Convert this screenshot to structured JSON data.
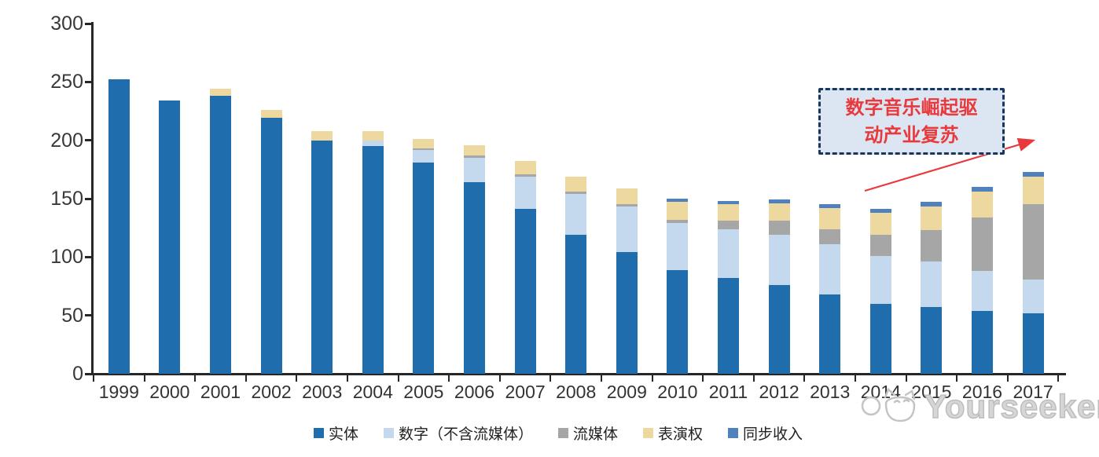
{
  "chart_data": {
    "type": "bar",
    "stacked": true,
    "title": "",
    "xlabel": "",
    "ylabel": "",
    "categories": [
      "1999",
      "2000",
      "2001",
      "2002",
      "2003",
      "2004",
      "2005",
      "2006",
      "2007",
      "2008",
      "2009",
      "2010",
      "2011",
      "2012",
      "2013",
      "2014",
      "2015",
      "2016",
      "2017"
    ],
    "series": [
      {
        "name": "实体",
        "color": "#1f6dad",
        "values": [
          252,
          234,
          238,
          219,
          200,
          195,
          181,
          164,
          141,
          119,
          104,
          89,
          82,
          76,
          68,
          60,
          57,
          54,
          52
        ]
      },
      {
        "name": "数字（不含流媒体）",
        "color": "#c5d9ee",
        "values": [
          0,
          0,
          0,
          0,
          0,
          5,
          11,
          21,
          28,
          35,
          39,
          40,
          42,
          43,
          43,
          41,
          39,
          34,
          29
        ]
      },
      {
        "name": "流媒体",
        "color": "#a6a6a6",
        "values": [
          0,
          0,
          0,
          0,
          0,
          0,
          1,
          2,
          2,
          2,
          2,
          3,
          7,
          12,
          13,
          18,
          27,
          46,
          64
        ]
      },
      {
        "name": "表演权",
        "color": "#edd9a0",
        "values": [
          0,
          0,
          6,
          7,
          8,
          8,
          8,
          9,
          11,
          13,
          14,
          15,
          14,
          15,
          18,
          19,
          20,
          22,
          24
        ]
      },
      {
        "name": "同步收入",
        "color": "#4e81bd",
        "values": [
          0,
          0,
          0,
          0,
          0,
          0,
          0,
          0,
          0,
          0,
          0,
          3,
          3,
          3,
          3,
          3,
          4,
          4,
          4
        ]
      }
    ],
    "ylim": [
      0,
      300
    ],
    "yticks": [
      0,
      50,
      100,
      150,
      200,
      250,
      300
    ],
    "grid": false,
    "legend_position": "bottom"
  },
  "annotation": {
    "text": "数字音乐崛起驱动产业复苏",
    "line1": "数字音乐崛起驱",
    "line2": "动产业复苏",
    "text_color": "#e8393c",
    "box_fill": "#dbe6f2",
    "box_border": "#17375e",
    "arrow_color": "#e8393c"
  },
  "watermark": {
    "text": "Yourseeker",
    "icon": "cat-logo-icon"
  }
}
